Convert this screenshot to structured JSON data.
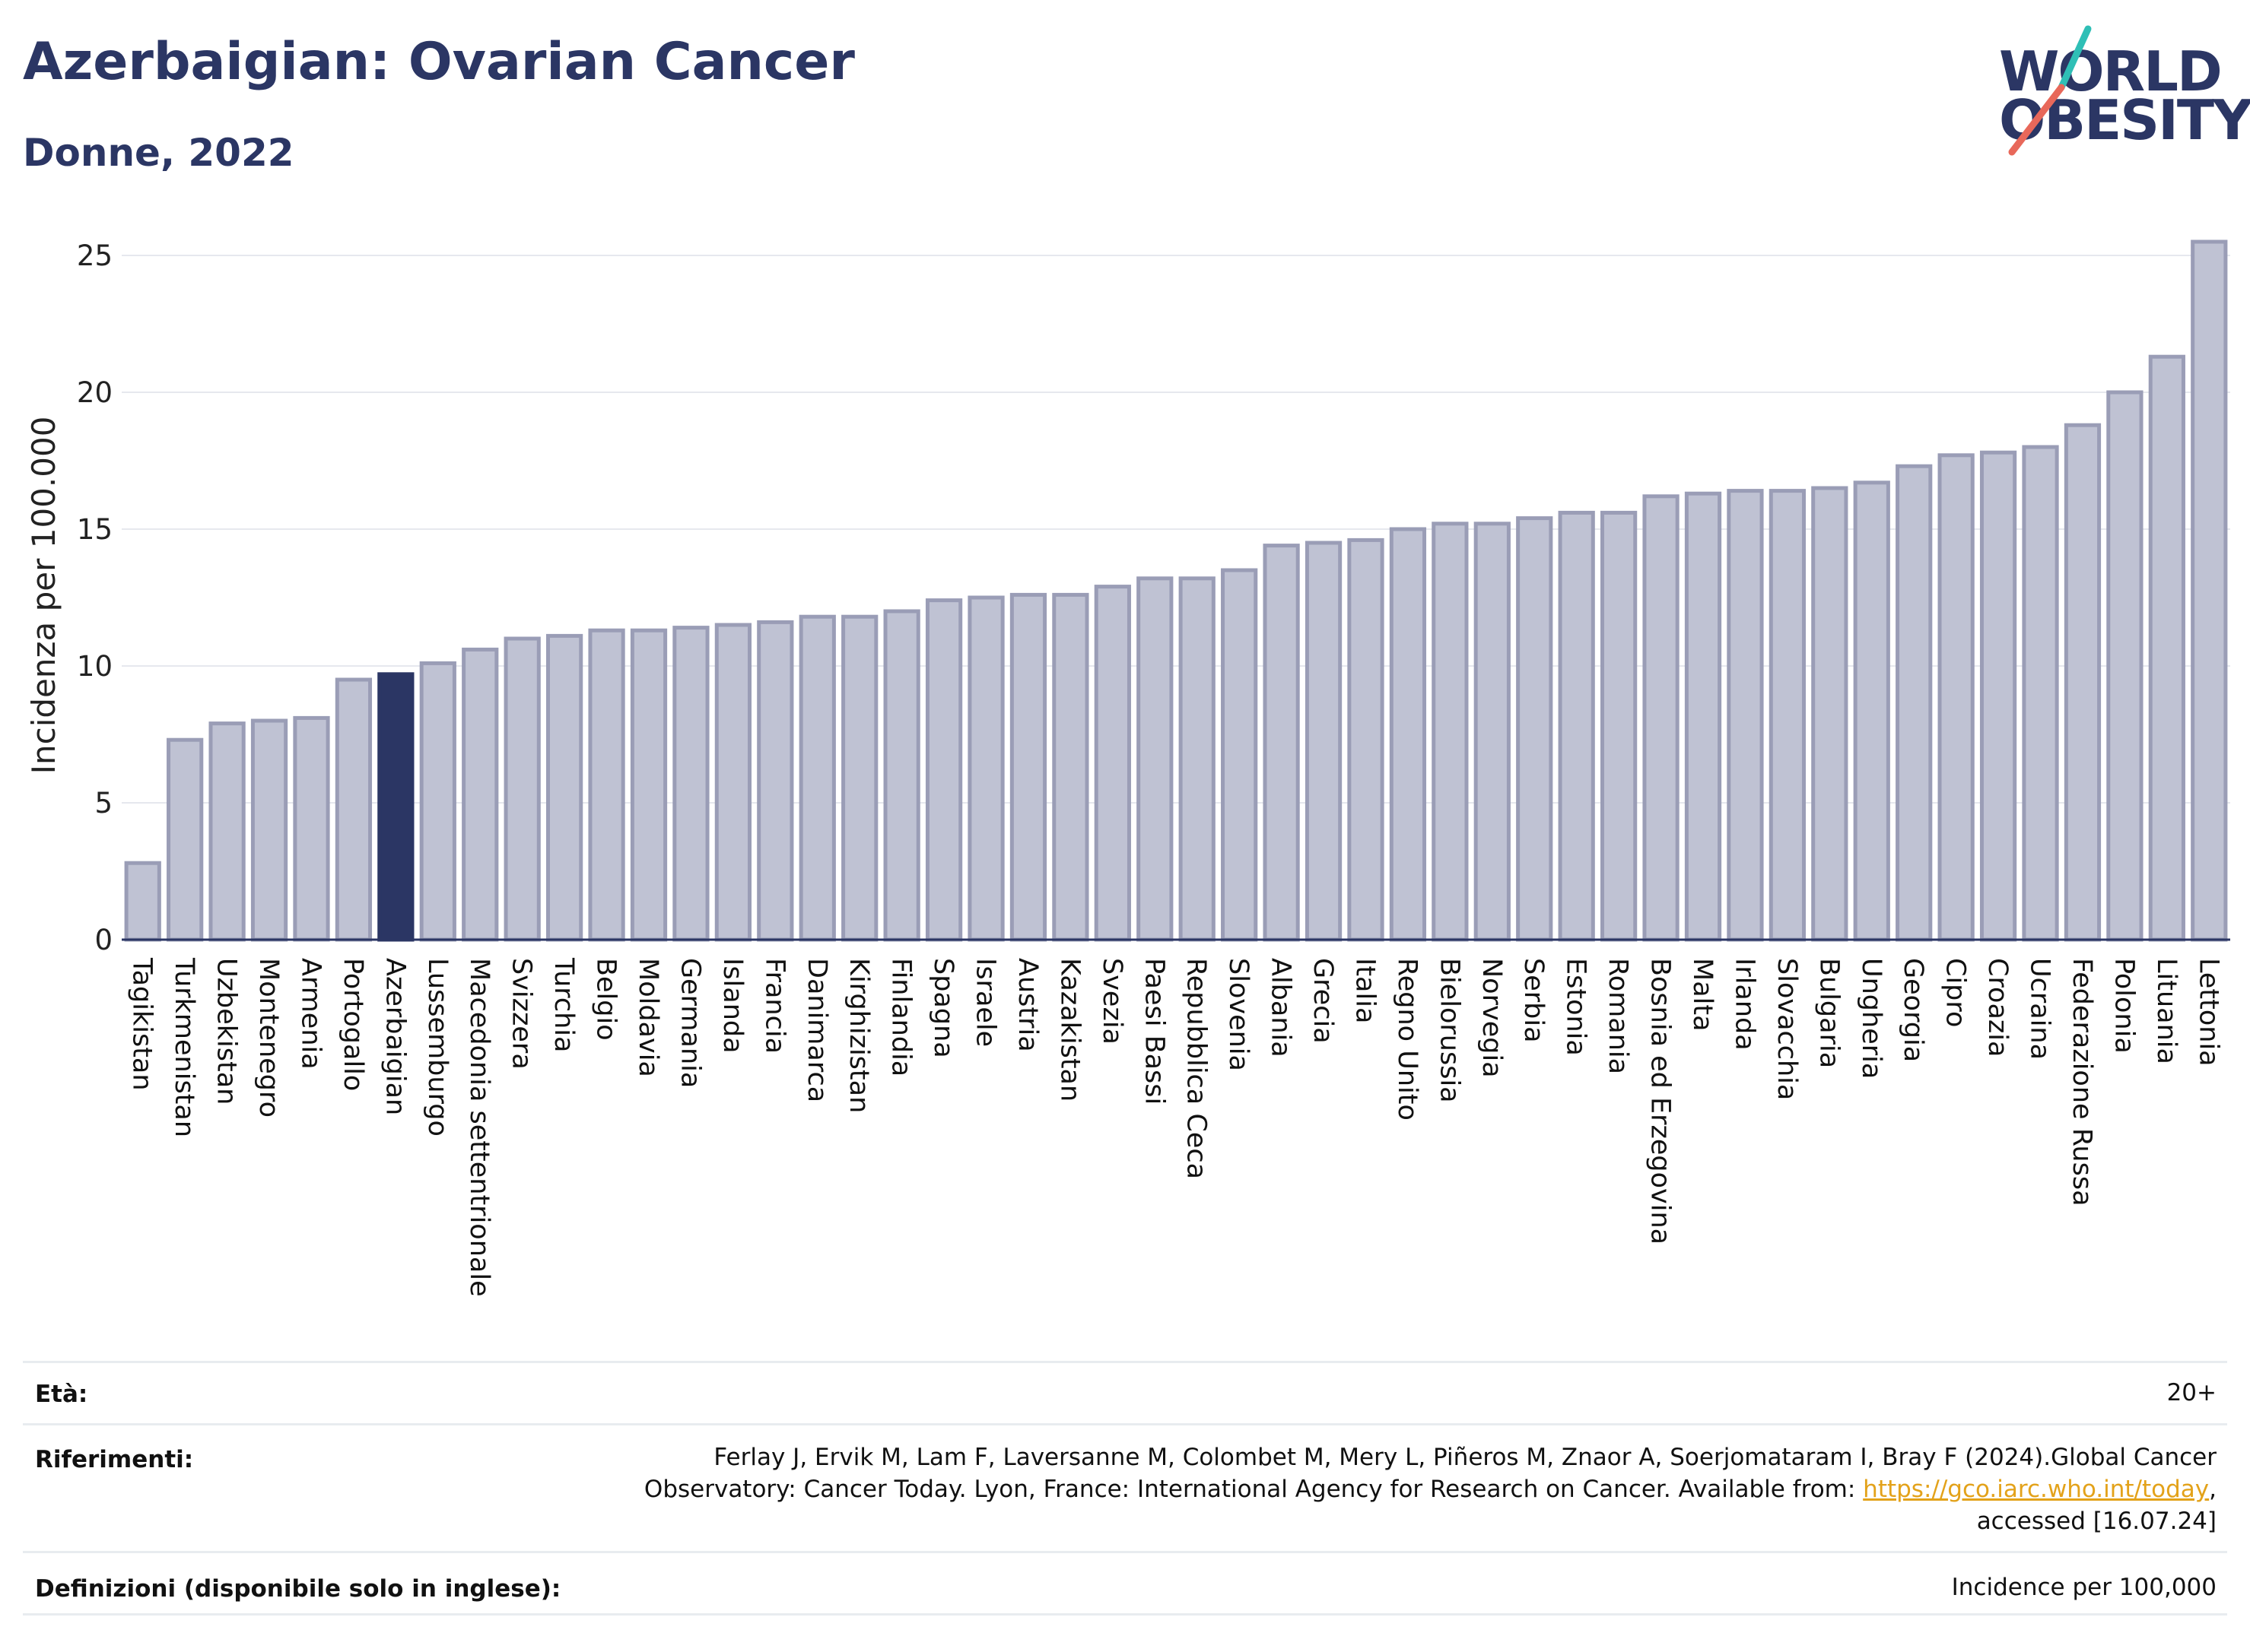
{
  "header": {
    "title": "Azerbaigian: Ovarian Cancer",
    "subtitle": "Donne, 2022"
  },
  "logo": {
    "line1": "WORLD",
    "line2": "OBESITY",
    "colors": {
      "text": "#2b3664",
      "slash_top": "#2fbfb6",
      "slash_bottom": "#e8685a"
    }
  },
  "chart_data": {
    "type": "bar",
    "ylabel": "Incidenza per 100.000",
    "xlabel": "",
    "ylim": [
      0,
      26
    ],
    "yticks": [
      0,
      5,
      10,
      15,
      20,
      25
    ],
    "grid": true,
    "highlight": "Azerbaigian",
    "colors": {
      "bar": "#bfc2d3",
      "bar_border": "#9a9db6",
      "highlight": "#2b3664"
    },
    "categories": [
      "Tagikistan",
      "Turkmenistan",
      "Uzbekistan",
      "Montenegro",
      "Armenia",
      "Portogallo",
      "Azerbaigian",
      "Lussemburgo",
      "Macedonia settentrionale",
      "Svizzera",
      "Turchia",
      "Belgio",
      "Moldavia",
      "Germania",
      "Islanda",
      "Francia",
      "Danimarca",
      "Kirghizistan",
      "Finlandia",
      "Spagna",
      "Israele",
      "Austria",
      "Kazakistan",
      "Svezia",
      "Paesi Bassi",
      "Repubblica Ceca",
      "Slovenia",
      "Albania",
      "Grecia",
      "Italia",
      "Regno Unito",
      "Bielorussia",
      "Norvegia",
      "Serbia",
      "Estonia",
      "Romania",
      "Bosnia ed Erzegovina",
      "Malta",
      "Irlanda",
      "Slovacchia",
      "Bulgaria",
      "Ungheria",
      "Georgia",
      "Cipro",
      "Croazia",
      "Ucraina",
      "Federazione Russa",
      "Polonia",
      "Lituania",
      "Lettonia"
    ],
    "values": [
      2.8,
      7.3,
      7.9,
      8.0,
      8.1,
      9.5,
      9.7,
      10.1,
      10.6,
      11.0,
      11.1,
      11.3,
      11.3,
      11.4,
      11.5,
      11.6,
      11.8,
      11.8,
      12.0,
      12.4,
      12.5,
      12.6,
      12.6,
      12.9,
      13.2,
      13.2,
      13.5,
      14.4,
      14.5,
      14.6,
      15.0,
      15.2,
      15.2,
      15.4,
      15.6,
      15.6,
      16.2,
      16.3,
      16.4,
      16.4,
      16.5,
      16.7,
      17.3,
      17.7,
      17.8,
      18.0,
      18.8,
      20.0,
      21.3,
      25.5
    ]
  },
  "meta": {
    "age_label": "Età:",
    "age_value": "20+",
    "ref_label": "Riferimenti:",
    "ref_line1": "Ferlay J, Ervik M, Lam F, Laversanne M, Colombet M, Mery L, Piñeros M, Znaor A, Soerjomataram I, Bray F (2024).Global Cancer",
    "ref_line2_pre": "Observatory: Cancer Today. Lyon, France: International Agency for Research on Cancer. Available from: ",
    "ref_link": "https://gco.iarc.who.int/today",
    "ref_line2_post": ",",
    "ref_line3": "accessed [16.07.24]",
    "def_label": "Definizioni (disponibile solo in inglese):",
    "def_value": "Incidence per 100,000"
  }
}
